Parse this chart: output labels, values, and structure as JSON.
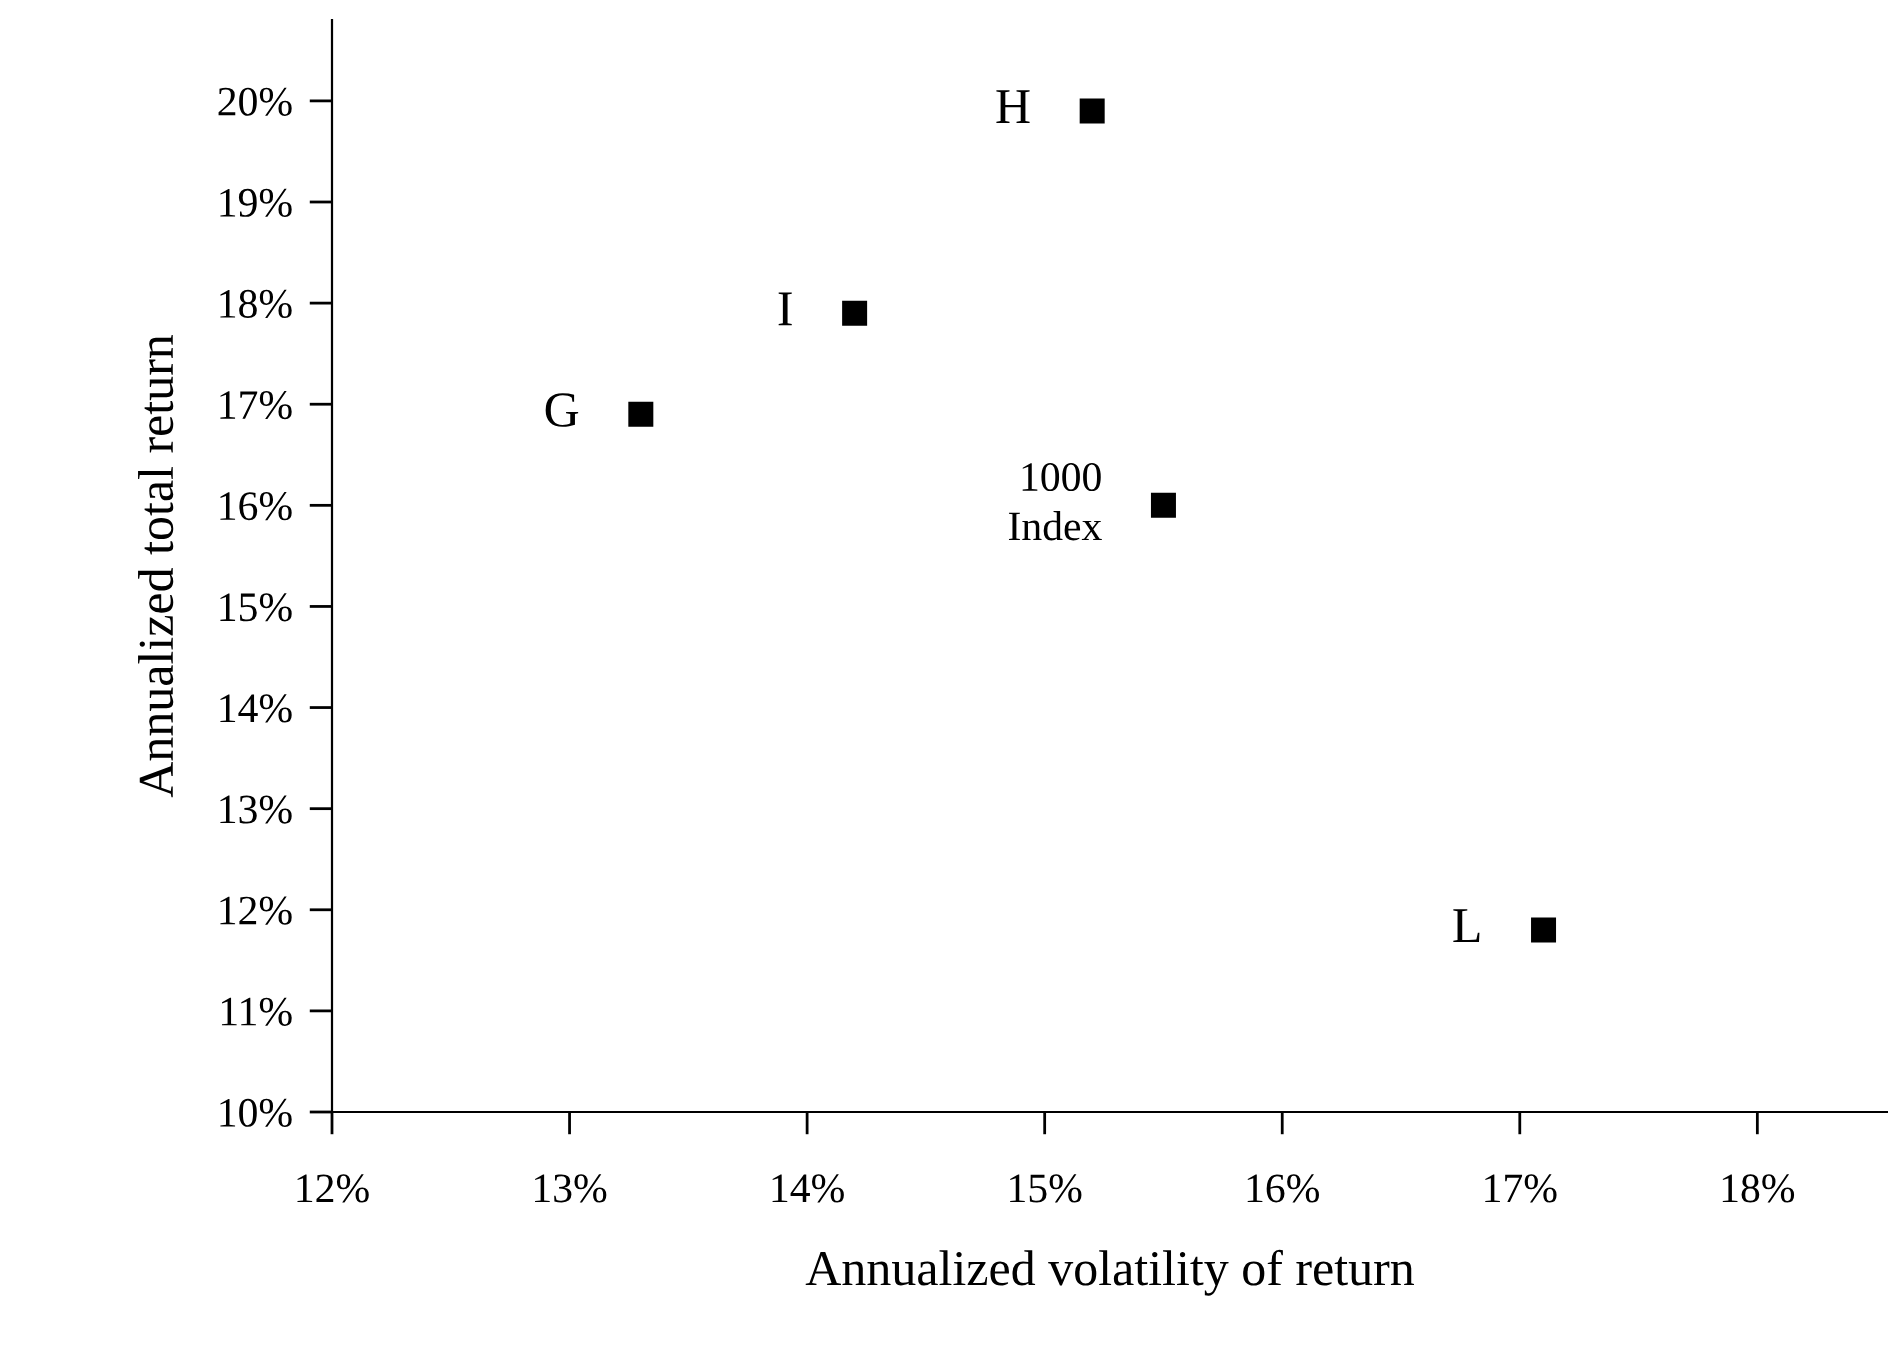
{
  "chart_data": {
    "type": "scatter",
    "xlabel": "Annualized volatility of return",
    "ylabel": "Annualized total return",
    "x": [
      13.3,
      14.2,
      15.2,
      15.5,
      17.1
    ],
    "series": [
      {
        "color": "#000000",
        "values": [
          16.9,
          17.9,
          19.9,
          16.0,
          11.8
        ]
      }
    ],
    "marker": "square",
    "grid": false,
    "xlim": [
      12,
      18.55
    ],
    "ylim": [
      10,
      20.8
    ],
    "xticks": [
      {
        "value": 12,
        "label": "12%"
      },
      {
        "value": 13,
        "label": "13%"
      },
      {
        "value": 14,
        "label": "14%"
      },
      {
        "value": 15,
        "label": "15%"
      },
      {
        "value": 16,
        "label": "16%"
      },
      {
        "value": 17,
        "label": "17%"
      },
      {
        "value": 18,
        "label": "18%"
      }
    ],
    "yticks": [
      {
        "value": 10,
        "label": "10%"
      },
      {
        "value": 11,
        "label": "11%"
      },
      {
        "value": 12,
        "label": "12%"
      },
      {
        "value": 13,
        "label": "13%"
      },
      {
        "value": 14,
        "label": "14%"
      },
      {
        "value": 15,
        "label": "15%"
      },
      {
        "value": 16,
        "label": "16%"
      },
      {
        "value": 17,
        "label": "17%"
      },
      {
        "value": 18,
        "label": "18%"
      },
      {
        "value": 19,
        "label": "19%"
      },
      {
        "value": 20,
        "label": "20%"
      }
    ],
    "annotations": [
      {
        "text": "G",
        "x": 13.3,
        "y": 16.9
      },
      {
        "text": "I",
        "x": 14.2,
        "y": 17.9
      },
      {
        "text": "H",
        "x": 15.2,
        "y": 19.9
      },
      {
        "text": "1000\nIndex",
        "x": 15.5,
        "y": 16.0
      },
      {
        "text": "L",
        "x": 17.1,
        "y": 11.8
      }
    ]
  }
}
